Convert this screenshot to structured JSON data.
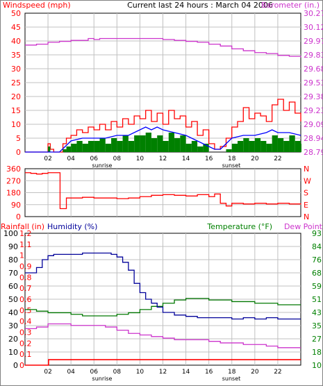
{
  "title": "Current last 24 hours : March 04 2006",
  "colors": {
    "wind": "#ff0000",
    "gust_fill": "#008000",
    "avg_line": "#0000ff",
    "baro": "#cc33cc",
    "dir": "#ff0000",
    "humidity": "#000099",
    "temperature": "#007700",
    "dewpoint": "#cc33cc",
    "rain": "#ff0000",
    "rain_axis": "#ff0000",
    "baro_axis": "#cc33cc",
    "temp_axis": "#008000",
    "grid": "#c0c0c0",
    "frame": "#000000"
  },
  "x_ticks": [
    "02",
    "04",
    "06",
    "08",
    "10",
    "12",
    "14",
    "16",
    "18",
    "20",
    "22"
  ],
  "sunrise_label": "sunrise",
  "sunset_label": "sunset",
  "chart_data": [
    {
      "type": "line",
      "name": "wind-panel",
      "title": "Current last 24 hours : March 04 2006",
      "ylabel_left": "Windspeed (mph)",
      "ylabel_right": "Barometer (in.)",
      "yticks_left": [
        "50",
        "45",
        "40",
        "35",
        "30",
        "25",
        "20",
        "15",
        "10",
        "5",
        "0"
      ],
      "yticks_right": [
        "30.27",
        "30.12",
        "29.97",
        "29.83",
        "29.68",
        "29.53",
        "29.38",
        "29.23",
        "29.09",
        "28.94",
        "28.79"
      ],
      "ylim_left": [
        0,
        50
      ],
      "ylim_right": [
        28.79,
        30.27
      ],
      "xlim_hours": [
        0,
        24
      ],
      "grid": true,
      "series": [
        {
          "key": "barometer",
          "axis": "right",
          "x": [
            0,
            1,
            2,
            3,
            4,
            5,
            5.5,
            6,
            6.5,
            7,
            8,
            9,
            10,
            11,
            12,
            13,
            14,
            15,
            16,
            17,
            18,
            19,
            20,
            21,
            22,
            23,
            24
          ],
          "values": [
            29.93,
            29.94,
            29.96,
            29.97,
            29.98,
            29.98,
            30.0,
            29.99,
            30.0,
            30.0,
            30.0,
            30.0,
            30.0,
            30.0,
            29.99,
            29.98,
            29.97,
            29.96,
            29.94,
            29.92,
            29.89,
            29.87,
            29.85,
            29.84,
            29.82,
            29.81,
            29.8
          ]
        },
        {
          "key": "gust",
          "axis": "left",
          "x": [
            0,
            1,
            1.8,
            2.0,
            2.2,
            2.5,
            3,
            3.3,
            3.6,
            4,
            4.5,
            5,
            5.5,
            6,
            6.5,
            7,
            7.5,
            8,
            8.5,
            9,
            9.5,
            10,
            10.5,
            11,
            11.5,
            12,
            12.5,
            13,
            13.5,
            14,
            14.5,
            15,
            15.5,
            16,
            16.5,
            17,
            17.5,
            18,
            18.5,
            19,
            19.5,
            20,
            20.5,
            21,
            21.5,
            22,
            22.5,
            23,
            23.5,
            24
          ],
          "values": [
            0,
            0,
            0,
            3,
            1,
            0,
            0,
            3,
            5,
            6,
            8,
            7,
            9,
            8,
            10,
            8,
            11,
            9,
            12,
            10,
            13,
            12,
            15,
            11,
            14,
            10,
            15,
            12,
            13,
            9,
            11,
            6,
            8,
            3,
            1,
            2,
            5,
            9,
            11,
            16,
            12,
            14,
            13,
            11,
            17,
            19,
            15,
            18,
            14,
            11
          ]
        },
        {
          "key": "windspeed",
          "axis": "left",
          "x": [
            0,
            1,
            1.8,
            2.0,
            2.2,
            2.5,
            3,
            3.3,
            3.6,
            4,
            4.5,
            5,
            5.5,
            6,
            6.5,
            7,
            7.5,
            8,
            8.5,
            9,
            9.5,
            10,
            10.5,
            11,
            11.5,
            12,
            12.5,
            13,
            13.5,
            14,
            14.5,
            15,
            15.5,
            16,
            16.5,
            17,
            17.5,
            18,
            18.5,
            19,
            19.5,
            20,
            20.5,
            21,
            21.5,
            22,
            22.5,
            23,
            23.5,
            24
          ],
          "values": [
            0,
            0,
            0,
            2,
            0,
            0,
            0,
            1,
            2,
            3,
            4,
            3,
            4,
            4,
            5,
            3,
            5,
            4,
            6,
            4,
            6,
            6,
            7,
            5,
            6,
            4,
            7,
            5,
            6,
            3,
            4,
            2,
            3,
            0,
            0,
            0,
            1,
            3,
            4,
            5,
            4,
            5,
            4,
            3,
            6,
            5,
            4,
            6,
            4,
            3
          ]
        },
        {
          "key": "average",
          "axis": "left",
          "x": [
            0,
            1,
            2,
            3,
            3.5,
            4,
            5,
            6,
            7,
            8,
            9,
            10,
            10.5,
            11,
            11.5,
            12,
            13,
            14,
            15,
            16,
            16.5,
            17,
            17.5,
            18,
            19,
            20,
            21,
            21.5,
            22,
            23,
            24
          ],
          "values": [
            0,
            0,
            0,
            0,
            2,
            4,
            5,
            5,
            5,
            6,
            6,
            8,
            9,
            8,
            9,
            8,
            7,
            6,
            4,
            2,
            1,
            1,
            3,
            5,
            6,
            6,
            7,
            8,
            7,
            7,
            6
          ]
        }
      ]
    },
    {
      "type": "line",
      "name": "direction-panel",
      "yticks_left": [
        "360",
        "270",
        "180",
        "90",
        "0"
      ],
      "yticks_right": [
        "N",
        "W",
        "S",
        "E",
        "N"
      ],
      "ylim": [
        0,
        360
      ],
      "xlim_hours": [
        0,
        24
      ],
      "grid": true,
      "series": [
        {
          "key": "wind_direction",
          "x": [
            0,
            0.5,
            1,
            1.5,
            2,
            2.5,
            3,
            3.05,
            3.5,
            3.6,
            4,
            5,
            6,
            7,
            8,
            9,
            10,
            11,
            12,
            13,
            14,
            15,
            16,
            16.5,
            17,
            17.5,
            18,
            19,
            20,
            21,
            22,
            23,
            24
          ],
          "values": [
            330,
            325,
            320,
            325,
            330,
            330,
            330,
            60,
            60,
            140,
            140,
            145,
            140,
            140,
            135,
            140,
            150,
            160,
            165,
            160,
            155,
            165,
            150,
            170,
            100,
            80,
            100,
            95,
            100,
            95,
            100,
            95,
            100
          ]
        }
      ]
    },
    {
      "type": "line",
      "name": "temperature-panel",
      "ylabel_left": "Rainfall (in)",
      "ylabel_mid": "Humidity (%)",
      "ylabel_right": "Temperature (°F)",
      "ylabel_right2": "Dew Point",
      "yticks_hum": [
        "100",
        "90",
        "80",
        "70",
        "60",
        "50",
        "40",
        "30",
        "20",
        "10",
        "0"
      ],
      "yticks_rain": [
        "1.2",
        "1.1",
        "1",
        "0.9",
        "0.8",
        "0.7",
        "0.6",
        "0.5",
        "0.4",
        "0.3",
        "0.2",
        "0.1",
        "0"
      ],
      "yticks_temp": [
        "93",
        "84",
        "76",
        "68",
        "59",
        "51",
        "43",
        "35",
        "27",
        "18",
        "10"
      ],
      "ylim_humidity": [
        0,
        100
      ],
      "ylim_rain": [
        0,
        1.2
      ],
      "ylim_temp": [
        10,
        93
      ],
      "xlim_hours": [
        0,
        24
      ],
      "grid": true,
      "series": [
        {
          "key": "humidity",
          "axis": "humidity",
          "x": [
            0,
            0.5,
            1,
            1.5,
            2,
            2.5,
            3,
            4,
            5,
            6,
            7,
            7.5,
            8,
            8.5,
            9,
            9.5,
            10,
            10.5,
            11,
            11.5,
            12,
            13,
            14,
            15,
            16,
            17,
            18,
            19,
            20,
            21,
            22,
            23,
            24
          ],
          "values": [
            70,
            70,
            74,
            80,
            83,
            84,
            84,
            84,
            85,
            85,
            85,
            84,
            82,
            78,
            72,
            62,
            55,
            50,
            47,
            44,
            40,
            38,
            37,
            36,
            36,
            36,
            35,
            36,
            35,
            36,
            35,
            35,
            35
          ]
        },
        {
          "key": "temperature",
          "axis": "temp",
          "x": [
            0,
            1,
            2,
            3,
            4,
            5,
            6,
            7,
            8,
            9,
            10,
            11,
            12,
            13,
            14,
            15,
            16,
            17,
            18,
            19,
            20,
            21,
            22,
            23,
            24
          ],
          "values": [
            45,
            44,
            43,
            43,
            42,
            41,
            41,
            41,
            42,
            43,
            45,
            47,
            49,
            51,
            52,
            52,
            51,
            51,
            50,
            50,
            49,
            49,
            48,
            48,
            48
          ]
        },
        {
          "key": "dewpoint",
          "axis": "temp",
          "x": [
            0,
            1,
            2,
            3,
            4,
            5,
            6,
            7,
            8,
            9,
            10,
            11,
            12,
            13,
            14,
            15,
            16,
            17,
            18,
            19,
            20,
            21,
            22,
            23,
            24
          ],
          "values": [
            33,
            34,
            36,
            36,
            35,
            35,
            35,
            34,
            32,
            30,
            29,
            28,
            27,
            26,
            26,
            26,
            25,
            24,
            24,
            23,
            23,
            22,
            21,
            21,
            21
          ]
        },
        {
          "key": "rainfall",
          "axis": "rain",
          "x": [
            0,
            1,
            2,
            2.05,
            3,
            4,
            8,
            12,
            16,
            20,
            24
          ],
          "values": [
            0,
            0,
            0,
            0.05,
            0.05,
            0.05,
            0.05,
            0.05,
            0.05,
            0.05,
            0.05
          ]
        }
      ]
    }
  ]
}
